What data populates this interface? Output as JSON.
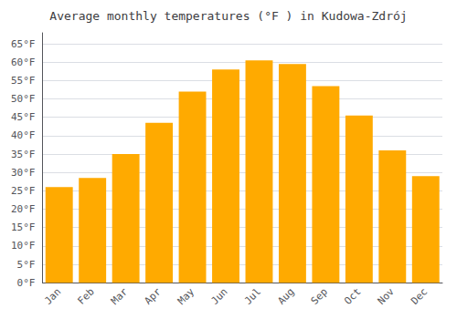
{
  "chart_data": {
    "type": "bar",
    "title": "Average monthly temperatures (°F ) in Kudowa-Zdrój",
    "categories": [
      "Jan",
      "Feb",
      "Mar",
      "Apr",
      "May",
      "Jun",
      "Jul",
      "Aug",
      "Sep",
      "Oct",
      "Nov",
      "Dec"
    ],
    "values": [
      26,
      28.5,
      35,
      43.5,
      52,
      58,
      60.5,
      59.5,
      53.5,
      45.5,
      36,
      29
    ],
    "color": "#FFAA00",
    "ylim": [
      0,
      68
    ],
    "yticks": [
      {
        "value": 0,
        "label": "0°F"
      },
      {
        "value": 5,
        "label": "5°F"
      },
      {
        "value": 10,
        "label": "10°F"
      },
      {
        "value": 15,
        "label": "15°F"
      },
      {
        "value": 20,
        "label": "20°F"
      },
      {
        "value": 25,
        "label": "25°F"
      },
      {
        "value": 30,
        "label": "30°F"
      },
      {
        "value": 35,
        "label": "35°F"
      },
      {
        "value": 40,
        "label": "40°F"
      },
      {
        "value": 45,
        "label": "45°F"
      },
      {
        "value": 50,
        "label": "50°F"
      },
      {
        "value": 55,
        "label": "55°F"
      },
      {
        "value": 60,
        "label": "60°F"
      },
      {
        "value": 65,
        "label": "65°F"
      }
    ],
    "grid": true
  }
}
